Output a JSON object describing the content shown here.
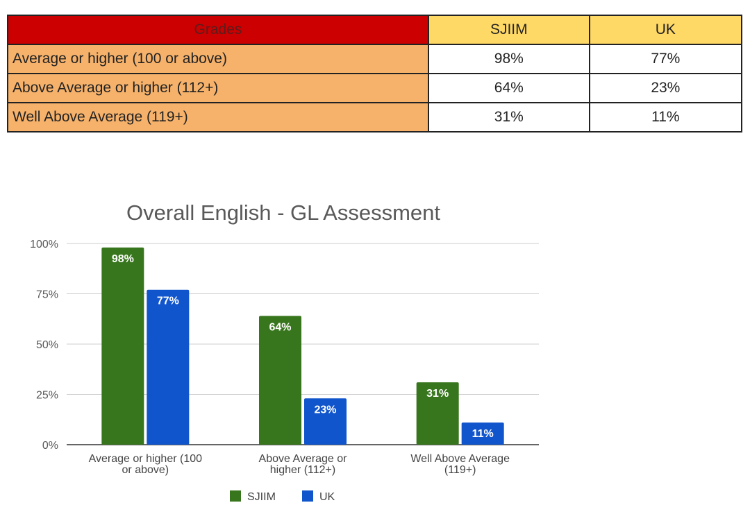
{
  "table": {
    "header": [
      "Grades",
      "SJIIM",
      "UK"
    ],
    "rows": [
      {
        "label": "Average or higher (100 or above)",
        "sjiim": "98%",
        "uk": "77%"
      },
      {
        "label": "Above Average or higher (112+)",
        "sjiim": "64%",
        "uk": "23%"
      },
      {
        "label": "Well Above Average (119+)",
        "sjiim": "31%",
        "uk": "11%"
      }
    ],
    "colors": {
      "grades_header": "#cc0000",
      "column_header": "#ffd966",
      "row_label": "#f6b26b"
    }
  },
  "chart_data": {
    "type": "bar",
    "title": "Overall English - GL Assessment",
    "categories": [
      "Average or higher (100 or above)",
      "Above Average or higher (112+)",
      "Well Above Average (119+)"
    ],
    "category_label_lines": [
      [
        "Average or higher (100",
        "or above)"
      ],
      [
        "Above Average or",
        "higher (112+)"
      ],
      [
        "Well Above Average",
        "(119+)"
      ]
    ],
    "series": [
      {
        "name": "SJIIM",
        "values": [
          98,
          64,
          31
        ],
        "labels": [
          "98%",
          "64%",
          "31%"
        ],
        "color": "#38761d"
      },
      {
        "name": "UK",
        "values": [
          77,
          23,
          11
        ],
        "labels": [
          "77%",
          "23%",
          "11%"
        ],
        "color": "#1155cc"
      }
    ],
    "ylim": [
      0,
      100
    ],
    "yticks": [
      0,
      25,
      50,
      75,
      100
    ],
    "ytick_labels": [
      "0%",
      "25%",
      "50%",
      "75%",
      "100%"
    ],
    "xlabel": "",
    "ylabel": "",
    "grid": true,
    "legend": "bottom"
  }
}
